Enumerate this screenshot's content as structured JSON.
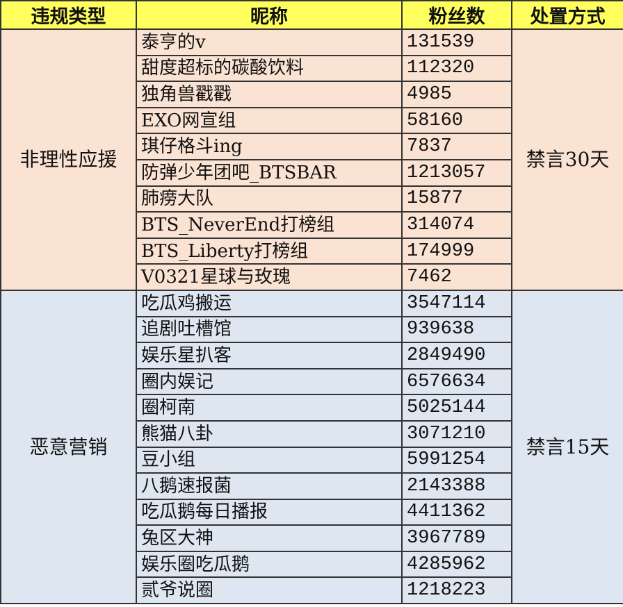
{
  "headers": [
    "违规类型",
    "昵称",
    "粉丝数",
    "处置方式"
  ],
  "groups": [
    {
      "category": "非理性应援",
      "action": "禁言30天",
      "color": "#fbe3d4",
      "rows": [
        {
          "name": "泰亨的v",
          "fans": "131539"
        },
        {
          "name": "甜度超标的碳酸饮料",
          "fans": "112320"
        },
        {
          "name": "独角兽戳戳",
          "fans": "4985"
        },
        {
          "name": "EXO网宣组",
          "fans": "58160"
        },
        {
          "name": "琪仔格斗ing",
          "fans": "7837"
        },
        {
          "name": "防弹少年团吧_BTSBAR",
          "fans": "1213057"
        },
        {
          "name": "肺痨大队",
          "fans": "15877"
        },
        {
          "name": "BTS_NeverEnd打榜组",
          "fans": "314074"
        },
        {
          "name": "BTS_Liberty打榜组",
          "fans": "174999"
        },
        {
          "name": "V0321星球与玫瑰",
          "fans": "7462"
        }
      ]
    },
    {
      "category": "恶意营销",
      "action": "禁言15天",
      "color": "#dde6f1",
      "rows": [
        {
          "name": "吃瓜鸡搬运",
          "fans": "3547114"
        },
        {
          "name": "追剧吐槽馆",
          "fans": "939638"
        },
        {
          "name": "娱乐星扒客",
          "fans": "2849490"
        },
        {
          "name": "圈内娱记",
          "fans": "6576634"
        },
        {
          "name": "圈柯南",
          "fans": "5025144"
        },
        {
          "name": "熊猫八卦",
          "fans": "3071210"
        },
        {
          "name": "豆小组",
          "fans": "5991254"
        },
        {
          "name": "八鹅速报菌",
          "fans": "2143388"
        },
        {
          "name": "吃瓜鹅每日播报",
          "fans": "4411362"
        },
        {
          "name": "兔区大神",
          "fans": "3967789"
        },
        {
          "name": "娱乐圈吃瓜鹅",
          "fans": "4285962"
        },
        {
          "name": "贰爷说圈",
          "fans": "1218223"
        }
      ]
    }
  ],
  "header_color": "#ffff5e"
}
